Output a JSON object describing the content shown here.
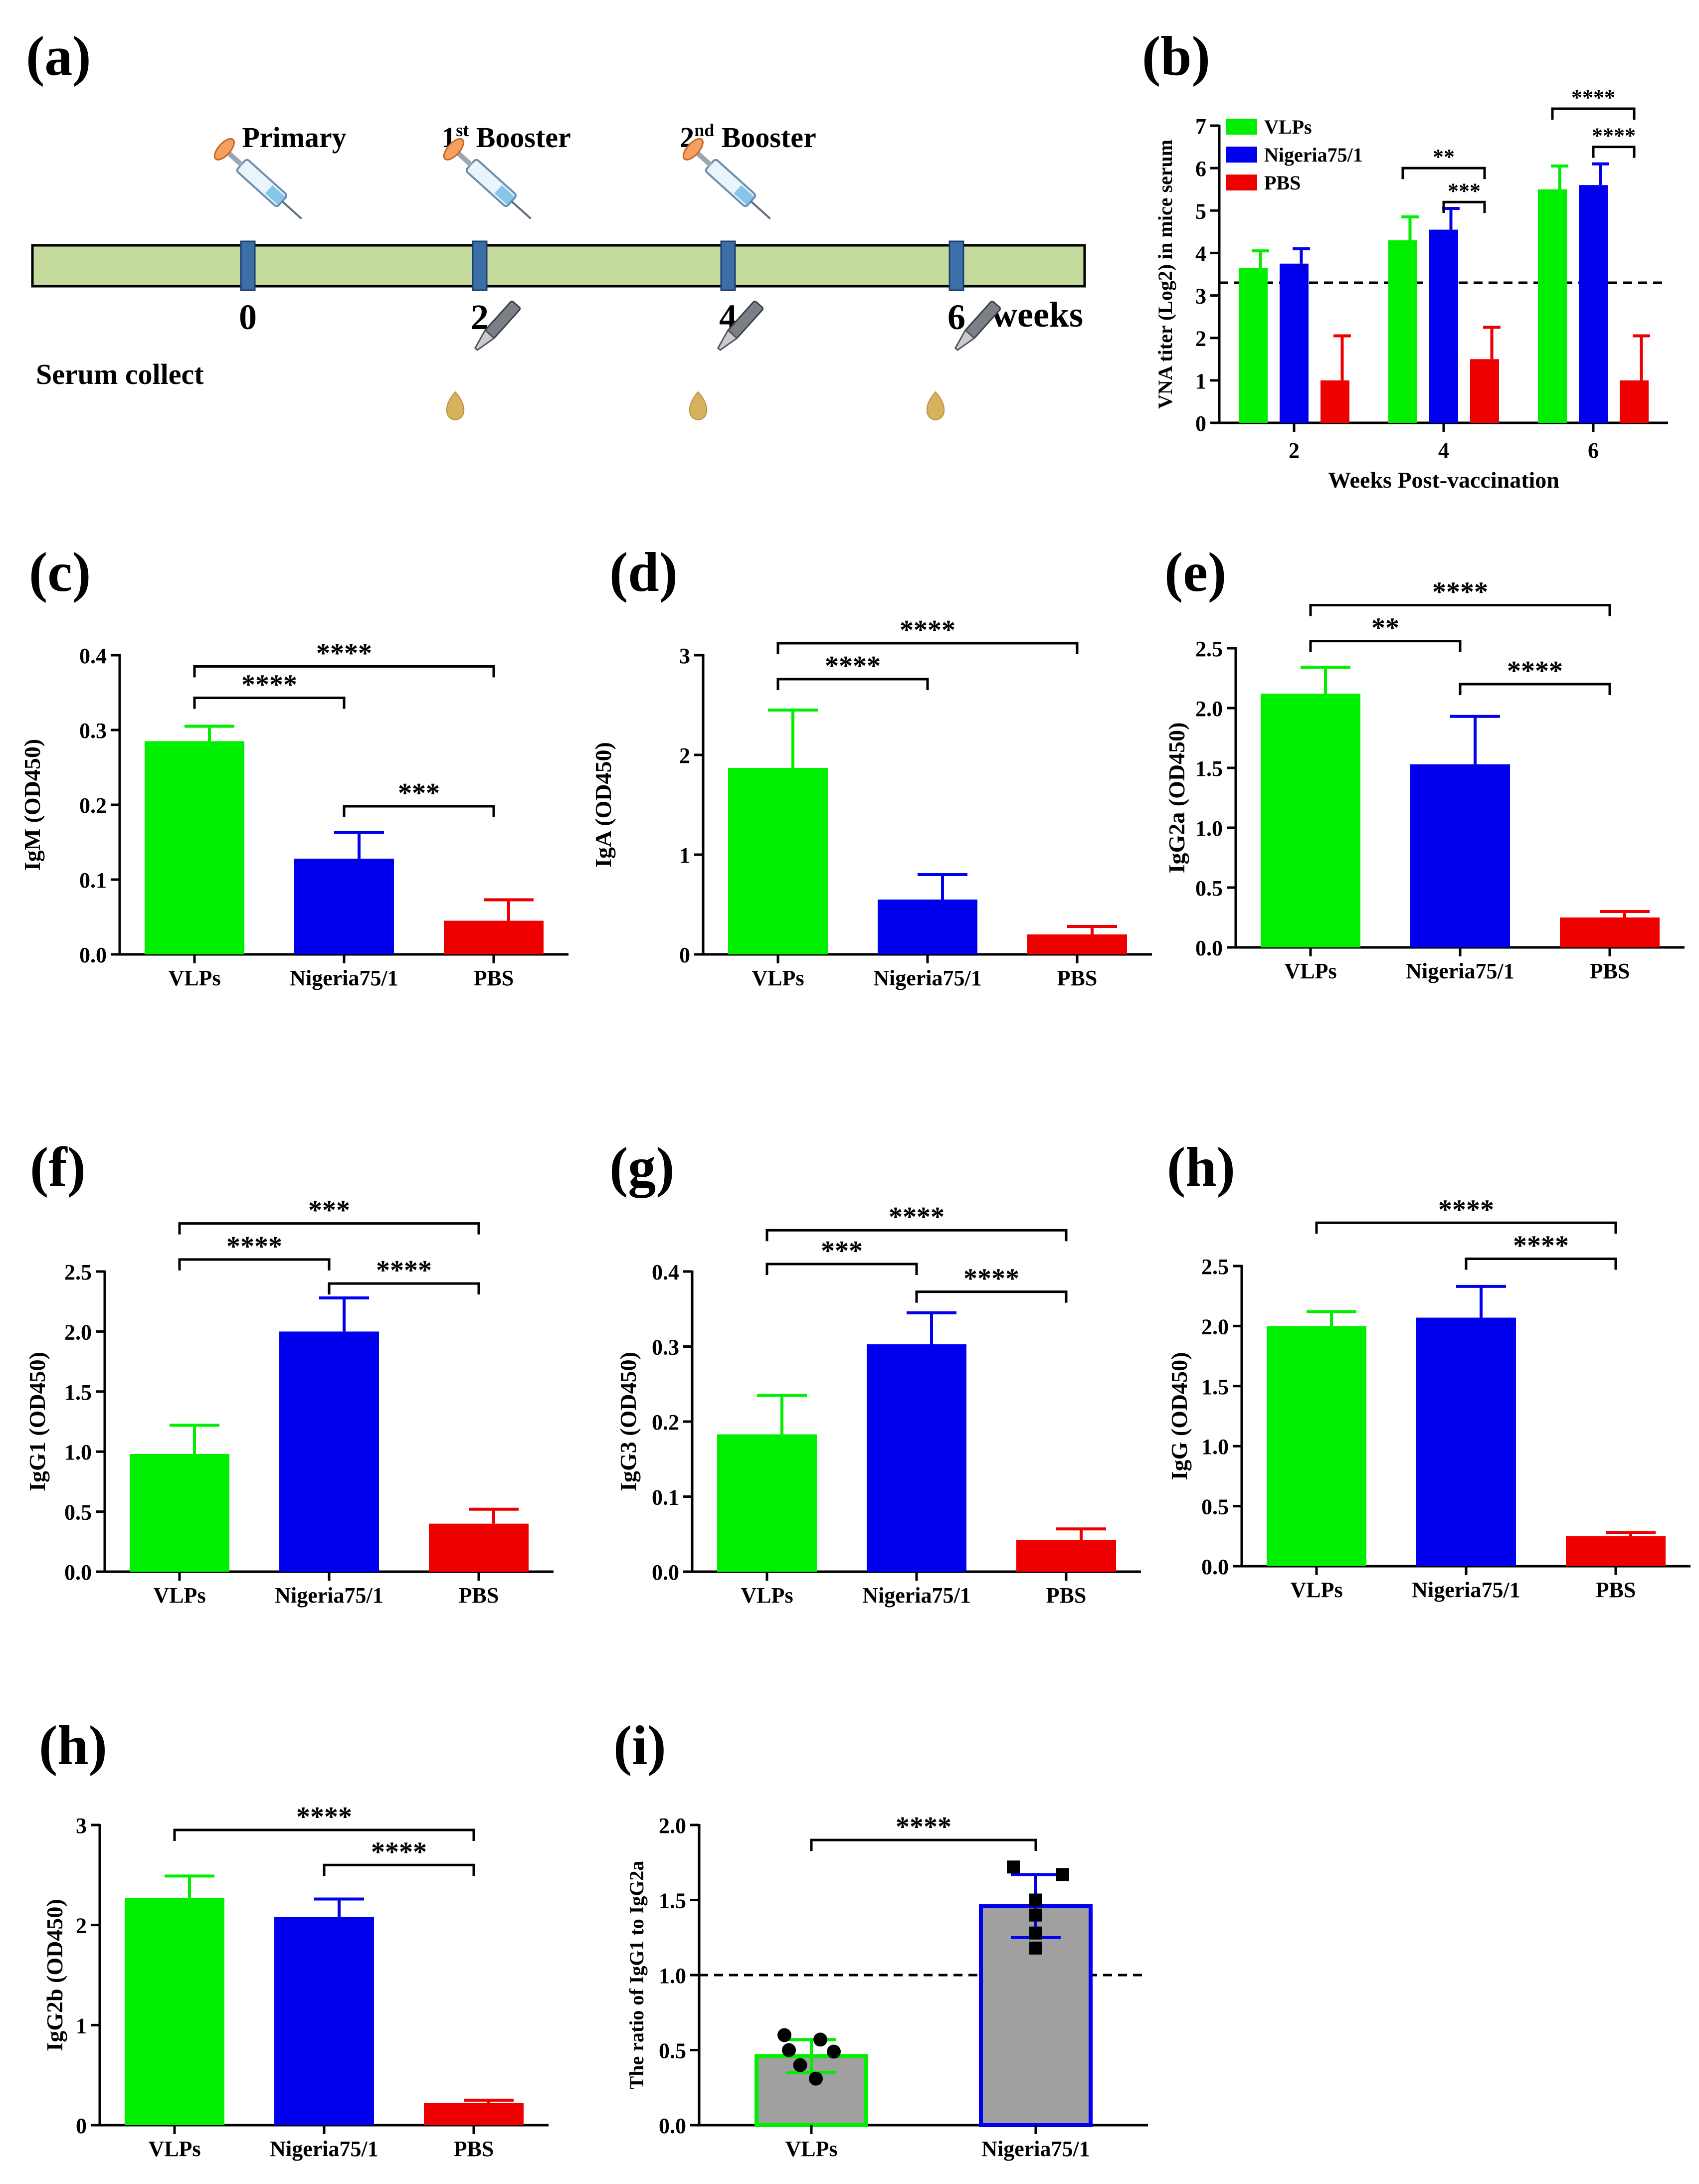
{
  "figure": {
    "colors": {
      "vlps": "#00EE00",
      "nigeria": "#0000EE",
      "pbs": "#EE0000",
      "grey": "#A0A0A0",
      "axis": "#000000",
      "timeline_fill": "#C5DB9E",
      "tick_fill": "#3C6EA8"
    },
    "panel_a": {
      "letter": "(a)",
      "events": [
        {
          "label": "Primary",
          "sup": "",
          "suffix": ""
        },
        {
          "label": "1",
          "sup": "st",
          "suffix": " Booster"
        },
        {
          "label": "2",
          "sup": "nd",
          "suffix": " Booster"
        }
      ],
      "week_ticks": [
        "0",
        "2",
        "4",
        "6"
      ],
      "week_unit": "weeks",
      "serum_label": "Serum collect",
      "icons": [
        "syringe-icon",
        "syringe-icon",
        "syringe-icon",
        "pipette-icon",
        "pipette-icon",
        "pipette-icon"
      ]
    }
  },
  "chart_data": [
    {
      "id": "b",
      "letter": "(b)",
      "type": "bar",
      "grouped": true,
      "xlabel": "Weeks Post-vaccination",
      "ylabel": "VNA titer (Log2) in mice serum",
      "categories": [
        "2",
        "4",
        "6"
      ],
      "ylim": [
        0,
        7
      ],
      "yticks": [
        "0",
        "1",
        "2",
        "3",
        "4",
        "5",
        "6",
        "7"
      ],
      "threshold": 3.3,
      "legend_position": "top-left",
      "series": [
        {
          "name": "VLPs",
          "color": "vlps",
          "values": [
            3.65,
            4.3,
            5.5
          ],
          "errors": [
            0.4,
            0.55,
            0.55
          ]
        },
        {
          "name": "Nigeria75/1",
          "color": "nigeria",
          "values": [
            3.75,
            4.55,
            5.6
          ],
          "errors": [
            0.35,
            0.5,
            0.5
          ]
        },
        {
          "name": "PBS",
          "color": "pbs",
          "values": [
            1.0,
            1.5,
            1.0
          ],
          "errors": [
            1.05,
            0.75,
            1.05
          ]
        }
      ],
      "significance": [
        {
          "label": "**",
          "from": "1:0",
          "to": "1:2",
          "y": 6.0
        },
        {
          "label": "***",
          "from": "1:1",
          "to": "1:2",
          "y": 5.2
        },
        {
          "label": "****",
          "from": "2:0",
          "to": "2:2",
          "y": 7.4
        },
        {
          "label": "****",
          "from": "2:1",
          "to": "2:2",
          "y": 6.5
        }
      ]
    },
    {
      "id": "c",
      "letter": "(c)",
      "type": "bar",
      "ylabel": "IgM (OD450)",
      "categories": [
        "VLPs",
        "Nigeria75/1",
        "PBS"
      ],
      "colors": [
        "vlps",
        "nigeria",
        "pbs"
      ],
      "values": [
        0.285,
        0.128,
        0.045
      ],
      "errors": [
        0.02,
        0.035,
        0.028
      ],
      "ylim": [
        0,
        0.4
      ],
      "yticks": [
        "0.0",
        "0.1",
        "0.2",
        "0.3",
        "0.4"
      ],
      "significance": [
        {
          "label": "****",
          "from": 0,
          "to": 2,
          "y": 0.385
        },
        {
          "label": "****",
          "from": 0,
          "to": 1,
          "y": 0.343
        },
        {
          "label": "***",
          "from": 1,
          "to": 2,
          "y": 0.198
        }
      ]
    },
    {
      "id": "d",
      "letter": "(d)",
      "type": "bar",
      "ylabel": "IgA (OD450)",
      "categories": [
        "VLPs",
        "Nigeria75/1",
        "PBS"
      ],
      "colors": [
        "vlps",
        "nigeria",
        "pbs"
      ],
      "values": [
        1.87,
        0.55,
        0.2
      ],
      "errors": [
        0.58,
        0.25,
        0.08
      ],
      "ylim": [
        0,
        3
      ],
      "yticks": [
        "0",
        "1",
        "2",
        "3"
      ],
      "significance": [
        {
          "label": "****",
          "from": 0,
          "to": 2,
          "y": 3.12
        },
        {
          "label": "****",
          "from": 0,
          "to": 1,
          "y": 2.76
        }
      ]
    },
    {
      "id": "e",
      "letter": "(e)",
      "type": "bar",
      "ylabel": "IgG2a (OD450)",
      "categories": [
        "VLPs",
        "Nigeria75/1",
        "PBS"
      ],
      "colors": [
        "vlps",
        "nigeria",
        "pbs"
      ],
      "values": [
        2.12,
        1.53,
        0.25
      ],
      "errors": [
        0.22,
        0.4,
        0.05
      ],
      "ylim": [
        0,
        2.5
      ],
      "yticks": [
        "0.0",
        "0.5",
        "1.0",
        "1.5",
        "2.0",
        "2.5"
      ],
      "significance": [
        {
          "label": "****",
          "from": 0,
          "to": 2,
          "y": 2.86
        },
        {
          "label": "**",
          "from": 0,
          "to": 1,
          "y": 2.56
        },
        {
          "label": "****",
          "from": 1,
          "to": 2,
          "y": 2.2
        }
      ]
    },
    {
      "id": "f",
      "letter": "(f)",
      "type": "bar",
      "ylabel": "IgG1 (OD450)",
      "categories": [
        "VLPs",
        "Nigeria75/1",
        "PBS"
      ],
      "colors": [
        "vlps",
        "nigeria",
        "pbs"
      ],
      "values": [
        0.98,
        2.0,
        0.4
      ],
      "errors": [
        0.24,
        0.28,
        0.12
      ],
      "ylim": [
        0,
        2.5
      ],
      "yticks": [
        "0.0",
        "0.5",
        "1.0",
        "1.5",
        "2.0",
        "2.5"
      ],
      "significance": [
        {
          "label": "***",
          "from": 0,
          "to": 2,
          "y": 2.9
        },
        {
          "label": "****",
          "from": 0,
          "to": 1,
          "y": 2.6
        },
        {
          "label": "****",
          "from": 1,
          "to": 2,
          "y": 2.4
        }
      ]
    },
    {
      "id": "g",
      "letter": "(g)",
      "type": "bar",
      "ylabel": "IgG3 (OD450)",
      "categories": [
        "VLPs",
        "Nigeria75/1",
        "PBS"
      ],
      "colors": [
        "vlps",
        "nigeria",
        "pbs"
      ],
      "values": [
        0.183,
        0.303,
        0.042
      ],
      "errors": [
        0.052,
        0.042,
        0.015
      ],
      "ylim": [
        0,
        0.4
      ],
      "yticks": [
        "0.0",
        "0.1",
        "0.2",
        "0.3",
        "0.4"
      ],
      "significance": [
        {
          "label": "****",
          "from": 0,
          "to": 2,
          "y": 0.455
        },
        {
          "label": "***",
          "from": 0,
          "to": 1,
          "y": 0.41
        },
        {
          "label": "****",
          "from": 1,
          "to": 2,
          "y": 0.373
        }
      ]
    },
    {
      "id": "h1",
      "letter": "(h)",
      "type": "bar",
      "ylabel": "IgG (OD450)",
      "categories": [
        "VLPs",
        "Nigeria75/1",
        "PBS"
      ],
      "colors": [
        "vlps",
        "nigeria",
        "pbs"
      ],
      "values": [
        2.0,
        2.07,
        0.25
      ],
      "errors": [
        0.12,
        0.26,
        0.03
      ],
      "ylim": [
        0,
        2.5
      ],
      "yticks": [
        "0.0",
        "0.5",
        "1.0",
        "1.5",
        "2.0",
        "2.5"
      ],
      "significance": [
        {
          "label": "****",
          "from": 0,
          "to": 2,
          "y": 2.86
        },
        {
          "label": "****",
          "from": 1,
          "to": 2,
          "y": 2.56
        }
      ]
    },
    {
      "id": "h2",
      "letter": "(h)",
      "type": "bar",
      "ylabel": "IgG2b (OD450)",
      "categories": [
        "VLPs",
        "Nigeria75/1",
        "PBS"
      ],
      "colors": [
        "vlps",
        "nigeria",
        "pbs"
      ],
      "values": [
        2.27,
        2.08,
        0.22
      ],
      "errors": [
        0.22,
        0.18,
        0.03
      ],
      "ylim": [
        0,
        3
      ],
      "yticks": [
        "0",
        "1",
        "2",
        "3"
      ],
      "significance": [
        {
          "label": "****",
          "from": 0,
          "to": 2,
          "y": 2.95
        },
        {
          "label": "****",
          "from": 1,
          "to": 2,
          "y": 2.6
        }
      ]
    },
    {
      "id": "i",
      "letter": "(i)",
      "type": "bar",
      "ylabel": "The ratio of IgG1 to IgG2a",
      "categories": [
        "VLPs",
        "Nigeria75/1"
      ],
      "colors": [
        "grey",
        "grey"
      ],
      "outline": [
        "vlps",
        "nigeria"
      ],
      "values": [
        0.46,
        1.46
      ],
      "errors": [
        0.11,
        0.21
      ],
      "ylim": [
        0,
        2.0
      ],
      "yticks": [
        "0.0",
        "0.5",
        "1.0",
        "1.5",
        "2.0"
      ],
      "threshold": 1.0,
      "points": [
        {
          "x": 0,
          "y": 0.6,
          "dx": -0.12,
          "marker": "circle"
        },
        {
          "x": 0,
          "y": 0.57,
          "dx": 0.04,
          "marker": "circle"
        },
        {
          "x": 0,
          "y": 0.5,
          "dx": -0.1,
          "marker": "circle"
        },
        {
          "x": 0,
          "y": 0.49,
          "dx": 0.1,
          "marker": "circle"
        },
        {
          "x": 0,
          "y": 0.4,
          "dx": -0.05,
          "marker": "circle"
        },
        {
          "x": 0,
          "y": 0.31,
          "dx": 0.02,
          "marker": "circle"
        },
        {
          "x": 1,
          "y": 1.72,
          "dx": -0.1,
          "marker": "square"
        },
        {
          "x": 1,
          "y": 1.67,
          "dx": 0.12,
          "marker": "square"
        },
        {
          "x": 1,
          "y": 1.5,
          "dx": 0.0,
          "marker": "square"
        },
        {
          "x": 1,
          "y": 1.4,
          "dx": 0.0,
          "marker": "square"
        },
        {
          "x": 1,
          "y": 1.28,
          "dx": 0.0,
          "marker": "square"
        },
        {
          "x": 1,
          "y": 1.18,
          "dx": 0.0,
          "marker": "square"
        }
      ],
      "significance": [
        {
          "label": "****",
          "from": 0,
          "to": 1,
          "y": 1.9
        }
      ]
    }
  ]
}
